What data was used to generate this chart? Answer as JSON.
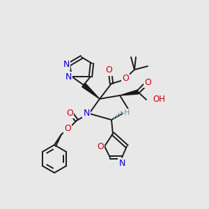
{
  "bg_color": "#e8e8e8",
  "bond_color": "#1a1a1a",
  "atom_colors": {
    "N": "#0000cc",
    "O": "#cc0000",
    "H": "#5f9ea0",
    "C": "#1a1a1a"
  }
}
